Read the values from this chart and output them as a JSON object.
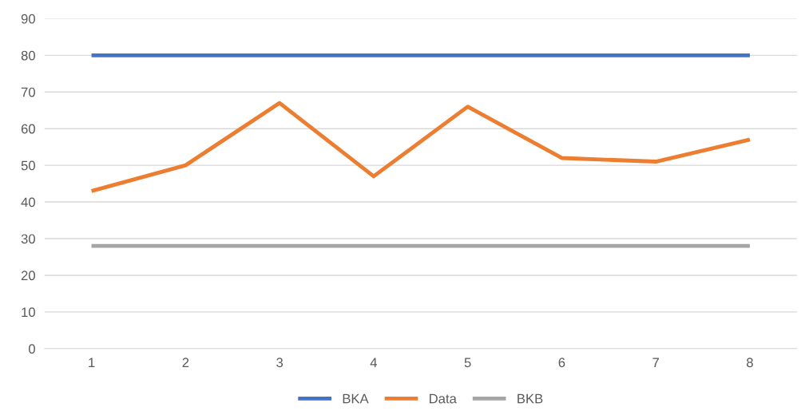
{
  "chart_data": {
    "type": "line",
    "categories": [
      "1",
      "2",
      "3",
      "4",
      "5",
      "6",
      "7",
      "8"
    ],
    "series": [
      {
        "name": "BKA",
        "color": "#4472c4",
        "values": [
          80,
          80,
          80,
          80,
          80,
          80,
          80,
          80
        ]
      },
      {
        "name": "Data",
        "color": "#ed7d31",
        "values": [
          43,
          50,
          67,
          47,
          66,
          52,
          51,
          57
        ]
      },
      {
        "name": "BKB",
        "color": "#a5a5a5",
        "values": [
          28,
          28,
          28,
          28,
          28,
          28,
          28,
          28
        ]
      }
    ],
    "ylim": [
      0,
      90
    ],
    "yticks": [
      0,
      10,
      20,
      30,
      40,
      50,
      60,
      70,
      80,
      90
    ],
    "grid": "y",
    "legend": "bottom",
    "marker": "none",
    "line_style": "solid"
  }
}
